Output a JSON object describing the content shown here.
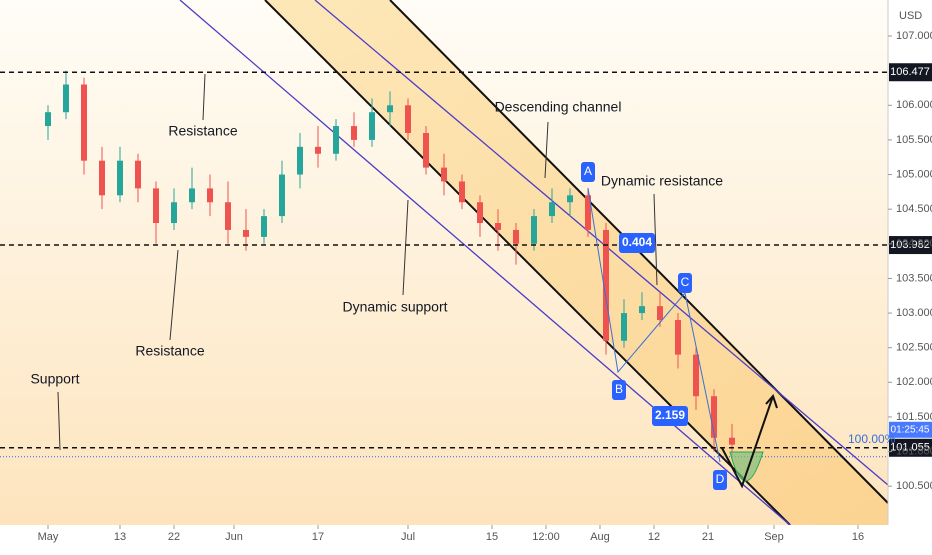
{
  "chart_data": {
    "type": "candlestick",
    "currency": "USD",
    "x": [
      0,
      3,
      6,
      9,
      12,
      15,
      18,
      21,
      24,
      27,
      30,
      33,
      36,
      39,
      42,
      45,
      48,
      51,
      54,
      57,
      60,
      63,
      66,
      69,
      72,
      75,
      78,
      81,
      84,
      87,
      90,
      93,
      96,
      99,
      102,
      105,
      108,
      111,
      114
    ],
    "open": [
      105.7,
      105.9,
      106.3,
      105.2,
      104.7,
      105.2,
      104.8,
      104.3,
      104.6,
      104.8,
      104.6,
      104.2,
      104.1,
      104.4,
      105.0,
      105.4,
      105.3,
      105.7,
      105.5,
      105.9,
      106.0,
      105.6,
      105.1,
      104.9,
      104.6,
      104.3,
      104.2,
      104.0,
      104.4,
      104.6,
      104.7,
      104.2,
      102.6,
      103.0,
      103.1,
      102.9,
      102.4,
      101.8,
      101.2
    ],
    "high": [
      106.0,
      106.5,
      106.4,
      105.4,
      105.4,
      105.3,
      104.9,
      104.8,
      105.1,
      105.0,
      104.9,
      104.5,
      104.5,
      105.2,
      105.6,
      105.7,
      105.8,
      105.9,
      106.1,
      106.2,
      106.1,
      105.7,
      105.3,
      105.0,
      104.7,
      104.5,
      104.3,
      104.5,
      104.8,
      104.8,
      104.8,
      104.3,
      103.2,
      103.3,
      103.3,
      103.0,
      102.5,
      101.9,
      101.4
    ],
    "low": [
      105.5,
      105.8,
      105.0,
      104.5,
      104.6,
      104.6,
      104.0,
      104.2,
      104.5,
      104.4,
      104.0,
      103.9,
      104.0,
      104.3,
      104.8,
      105.1,
      105.2,
      105.4,
      105.4,
      105.7,
      105.5,
      105.0,
      104.7,
      104.5,
      104.1,
      103.9,
      103.7,
      103.9,
      104.3,
      104.4,
      104.1,
      102.4,
      102.5,
      102.9,
      102.8,
      102.2,
      101.6,
      101.0,
      100.9
    ],
    "close": [
      105.9,
      106.3,
      105.2,
      104.7,
      105.2,
      104.8,
      104.3,
      104.6,
      104.8,
      104.6,
      104.2,
      104.1,
      104.4,
      105.0,
      105.4,
      105.3,
      105.7,
      105.5,
      105.9,
      106.0,
      105.6,
      105.1,
      104.9,
      104.6,
      104.3,
      104.2,
      104.0,
      104.4,
      104.6,
      104.7,
      104.2,
      102.6,
      103.0,
      103.1,
      102.9,
      102.4,
      101.8,
      101.2,
      101.1
    ],
    "up_color": "#26a69a",
    "down_color": "#ef5350",
    "xlim": [
      -8,
      140
    ],
    "xticks": [
      {
        "value": 0,
        "label": "May"
      },
      {
        "value": 12,
        "label": "13"
      },
      {
        "value": 21,
        "label": "22"
      },
      {
        "value": 31,
        "label": "Jun"
      },
      {
        "value": 45,
        "label": "17"
      },
      {
        "value": 60,
        "label": "Jul"
      },
      {
        "value": 74,
        "label": "15"
      },
      {
        "value": 83,
        "label": "12:00"
      },
      {
        "value": 92,
        "label": "Aug"
      },
      {
        "value": 101,
        "label": "12"
      },
      {
        "value": 110,
        "label": "21"
      },
      {
        "value": 121,
        "label": "Sep"
      },
      {
        "value": 135,
        "label": "16"
      }
    ],
    "ylim": [
      99.94,
      107.52
    ],
    "yticks": [
      {
        "value": 100.5,
        "label": "100.500"
      },
      {
        "value": 101,
        "label": "101.000"
      },
      {
        "value": 101.5,
        "label": "101.500"
      },
      {
        "value": 102,
        "label": "102.000"
      },
      {
        "value": 102.5,
        "label": "102.500"
      },
      {
        "value": 103,
        "label": "103.000"
      },
      {
        "value": 103.5,
        "label": "103.500"
      },
      {
        "value": 104,
        "label": "104.000"
      },
      {
        "value": 104.5,
        "label": "104.500"
      },
      {
        "value": 105,
        "label": "105.000"
      },
      {
        "value": 105.5,
        "label": "105.500"
      },
      {
        "value": 106,
        "label": "106.000"
      },
      {
        "value": 107,
        "label": "107.000"
      }
    ],
    "levels": [
      106.477,
      103.982,
      101.055
    ],
    "countdown": "01:25:45",
    "fib_label": "100.00%",
    "annotations": [
      "Resistance",
      "Resistance",
      "Dynamic support",
      "Support",
      "Descending channel",
      "Dynamic resistance"
    ],
    "points": [
      "A",
      "B",
      "C",
      "D"
    ],
    "leg_labels": [
      "0.404",
      "2.159"
    ]
  }
}
